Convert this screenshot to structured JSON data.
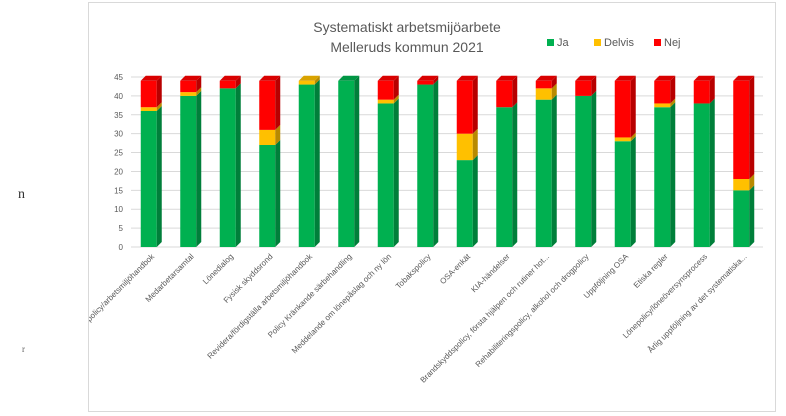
{
  "stray_text": {
    "left_char": "n",
    "bottom_char": "r"
  },
  "colors": {
    "Ja": "#00b050",
    "Delvis": "#ffc000",
    "Nej": "#ff0000",
    "grid": "#d9d9d9",
    "text": "#595959"
  },
  "chart_data": {
    "type": "bar",
    "stacked": true,
    "style": "3d-stacked-column",
    "title": "Systematiskt arbetsmijöarbete",
    "subtitle": "Melleruds kommun 2021",
    "legend_position": "top-right",
    "grid": true,
    "ylim": [
      0,
      45
    ],
    "yticks": [
      0,
      5,
      10,
      15,
      20,
      25,
      30,
      35,
      40,
      45
    ],
    "categories": [
      "Arbetsmiljöpolicy/arbetsmiljöhandbok",
      "Medarbetarsamtal",
      "Lönedialog",
      "Fysisk skyddsrond",
      "Revidera/fördigställa arbetsmiljöhandbok",
      "Policy Kränkande särbehandling",
      "Meddelande om lönepåslag och ny lön",
      "Tobakspolicy",
      "OSA-enkät",
      "KIA-händelser",
      "Brandskyddspolicy, första hjälpen och rutiner hot...",
      "Rehabiliteringspolicy, alkohol och drogpolicy",
      "Uppföljning OSA",
      "Etiska regler",
      "Lönepolicy/löneöversynsprocess",
      "Årlig uppföljning av det systematiska..."
    ],
    "series": [
      {
        "name": "Ja",
        "values": [
          36,
          40,
          42,
          27,
          43,
          44,
          38,
          43,
          23,
          37,
          39,
          40,
          28,
          37,
          38,
          15
        ]
      },
      {
        "name": "Delvis",
        "values": [
          1,
          1,
          0,
          4,
          1,
          0,
          1,
          0,
          7,
          0,
          3,
          0,
          1,
          1,
          0,
          3
        ]
      },
      {
        "name": "Nej",
        "values": [
          7,
          3,
          2,
          13,
          0,
          0,
          5,
          1,
          14,
          7,
          2,
          4,
          15,
          6,
          6,
          26
        ]
      }
    ]
  }
}
